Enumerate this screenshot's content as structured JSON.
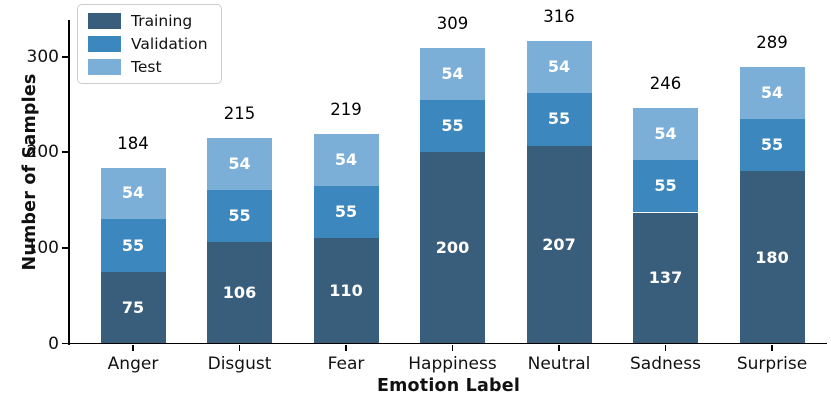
{
  "chart_data": {
    "type": "bar",
    "stacked": true,
    "title": "",
    "xlabel": "Emotion Label",
    "ylabel": "Number of Samples",
    "categories": [
      "Anger",
      "Disgust",
      "Fear",
      "Happiness",
      "Neutral",
      "Sadness",
      "Surprise"
    ],
    "series": [
      {
        "name": "Training",
        "color": "#395E7C",
        "values": [
          75,
          106,
          110,
          200,
          207,
          137,
          180
        ]
      },
      {
        "name": "Validation",
        "color": "#3C87BE",
        "values": [
          55,
          55,
          55,
          55,
          55,
          55,
          55
        ]
      },
      {
        "name": "Test",
        "color": "#7CAFD8",
        "values": [
          54,
          54,
          54,
          54,
          54,
          54,
          54
        ]
      }
    ],
    "totals": [
      184,
      215,
      219,
      309,
      316,
      246,
      289
    ],
    "yticks": [
      0,
      100,
      200,
      300
    ],
    "ylim": [
      0,
      338
    ],
    "grid": false,
    "legend_position": "upper-left",
    "bar_value_text_color": "#ffffff",
    "axis_color": "#000000"
  }
}
